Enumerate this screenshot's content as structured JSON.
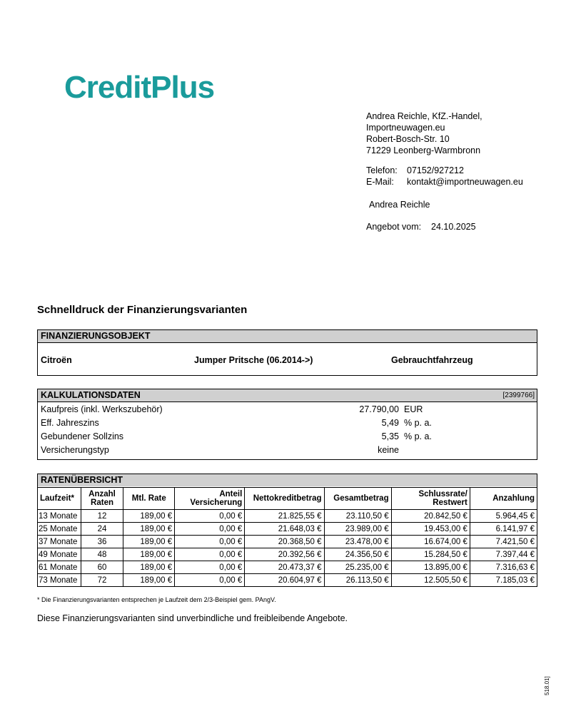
{
  "logo": {
    "text": "CreditPlus"
  },
  "dealer": {
    "lines": [
      "Andrea Reichle, KfZ.-Handel,",
      "Importneuwagen.eu",
      "Robert-Bosch-Str. 10",
      "71229 Leonberg-Warmbronn"
    ],
    "phone_label": "Telefon:",
    "phone": "07152/927212",
    "email_label": "E-Mail:",
    "email": "kontakt@importneuwagen.eu",
    "contact": "Andrea Reichle",
    "offer_label": "Angebot vom:",
    "offer_date": "24.10.2025"
  },
  "heading": "Schnelldruck der Finanzierungsvarianten",
  "object": {
    "title": "FINANZIERUNGSOBJEKT",
    "make": "Citroën",
    "model": "Jumper Pritsche (06.2014->)",
    "condition": "Gebrauchtfahrzeug"
  },
  "calc": {
    "title": "KALKULATIONSDATEN",
    "id": "[2399766]",
    "rows": [
      {
        "label": "Kaufpreis (inkl. Werkszubehör)",
        "value": "27.790,00",
        "unit": "EUR"
      },
      {
        "label": "Eff. Jahreszins",
        "value": "5,49",
        "unit": "% p. a."
      },
      {
        "label": "Gebundener Sollzins",
        "value": "5,35",
        "unit": "% p. a."
      },
      {
        "label": "Versicherungstyp",
        "value": "keine"
      }
    ]
  },
  "rates": {
    "title": "RATENÜBERSICHT",
    "headers": [
      "Laufzeit*",
      "Anzahl\nRaten",
      "Mtl. Rate",
      "Anteil\nVersicherung",
      "Nettokreditbetrag",
      "Gesamtbetrag",
      "Schlussrate/\nRestwert",
      "Anzahlung"
    ],
    "rows": [
      [
        "13 Monate",
        "12",
        "189,00 €",
        "0,00 €",
        "21.825,55 €",
        "23.110,50 €",
        "20.842,50 €",
        "5.964,45 €"
      ],
      [
        "25 Monate",
        "24",
        "189,00 €",
        "0,00 €",
        "21.648,03 €",
        "23.989,00 €",
        "19.453,00 €",
        "6.141,97 €"
      ],
      [
        "37 Monate",
        "36",
        "189,00 €",
        "0,00 €",
        "20.368,50 €",
        "23.478,00 €",
        "16.674,00 €",
        "7.421,50 €"
      ],
      [
        "49 Monate",
        "48",
        "189,00 €",
        "0,00 €",
        "20.392,56 €",
        "24.356,50 €",
        "15.284,50 €",
        "7.397,44 €"
      ],
      [
        "61 Monate",
        "60",
        "189,00 €",
        "0,00 €",
        "20.473,37 €",
        "25.235,00 €",
        "13.895,00 €",
        "7.316,63 €"
      ],
      [
        "73 Monate",
        "72",
        "189,00 €",
        "0,00 €",
        "20.604,97 €",
        "26.113,50 €",
        "12.505,50 €",
        "7.185,03 €"
      ]
    ]
  },
  "footnote": "* Die Finanzierungsvarianten entsprechen je Laufzeit dem 2/3-Beispiel gem. PAngV.",
  "disclaimer": "Diese Finanzierungsvarianten sind unverbindliche und freibleibende Angebote.",
  "side_code": "518.01]"
}
